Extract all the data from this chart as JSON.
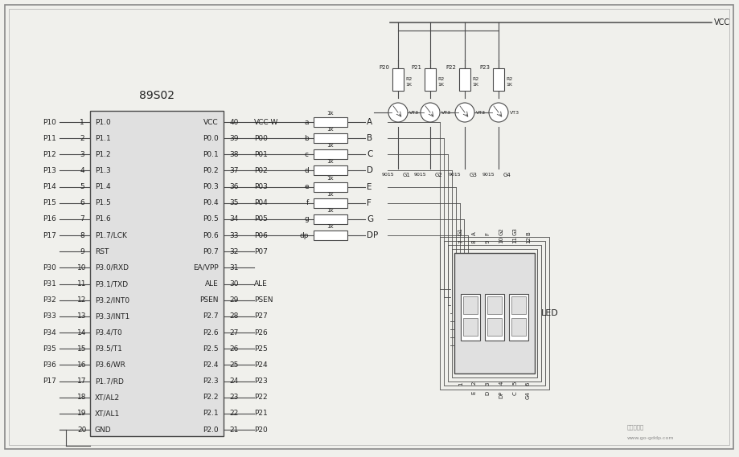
{
  "bg_color": "#f0f0ec",
  "chip_label": "89S02",
  "left_pins": [
    [
      "P10",
      "1"
    ],
    [
      "P11",
      "2"
    ],
    [
      "P12",
      "3"
    ],
    [
      "P13",
      "4"
    ],
    [
      "P14",
      "5"
    ],
    [
      "P15",
      "6"
    ],
    [
      "P16",
      "7"
    ],
    [
      "P17",
      "8"
    ],
    [
      "",
      "9"
    ],
    [
      "P30",
      "10"
    ],
    [
      "P31",
      "11"
    ],
    [
      "P32",
      "12"
    ],
    [
      "P33",
      "13"
    ],
    [
      "P34",
      "14"
    ],
    [
      "P35",
      "15"
    ],
    [
      "P36",
      "16"
    ],
    [
      "P17",
      "17"
    ],
    [
      "",
      "18"
    ],
    [
      "",
      "19"
    ],
    [
      "",
      "20"
    ]
  ],
  "left_inner": [
    "P1.0",
    "P1.1",
    "P1.2",
    "P1.3",
    "P1.4",
    "P1.5",
    "P1.6",
    "P1.7/LCK",
    "RST",
    "P3.0/RXD",
    "P3.1/TXD",
    "P3.2/INT0",
    "P3.3/INT1",
    "P3.4/T0",
    "P3.5/T1",
    "P3.6/WR",
    "P1.7/RD",
    "XT/AL2",
    "XT/AL1",
    "GND"
  ],
  "right_inner": [
    "VCC",
    "P0.0",
    "P0.1",
    "P0.2",
    "P0.3",
    "P0.4",
    "P0.5",
    "P0.6",
    "P0.7",
    "EA/VPP",
    "ALE",
    "PSEN",
    "P2.7",
    "P2.6",
    "P2.5",
    "P2.4",
    "P2.3",
    "P2.2",
    "P2.1",
    "P2.0"
  ],
  "right_pins": [
    "40",
    "39",
    "38",
    "37",
    "36",
    "35",
    "34",
    "33",
    "32",
    "31",
    "30",
    "29",
    "28",
    "27",
    "26",
    "25",
    "24",
    "23",
    "22",
    "21"
  ],
  "right_labels": [
    "VCC-W",
    "P00",
    "P01",
    "P02",
    "P03",
    "P04",
    "P05",
    "P06",
    "P07",
    "",
    "ALE",
    "PSEN",
    "P27",
    "P26",
    "P25",
    "P24",
    "P23",
    "P22",
    "P21",
    "P20"
  ],
  "seg_labels": [
    "a",
    "b",
    "c",
    "d",
    "e",
    "f",
    "g",
    "dp"
  ],
  "sig_names": [
    "A",
    "B",
    "C",
    "D",
    "E",
    "F",
    "G",
    "DP"
  ],
  "trans_ports": [
    "P20",
    "P21",
    "P22",
    "P23"
  ],
  "trans_g": [
    "G1",
    "G2",
    "G3",
    "G4"
  ],
  "vcc_label": "VCC",
  "ec": "#4a4a4a",
  "fc_chip": "#e0e0e0",
  "fc_white": "#ffffff"
}
